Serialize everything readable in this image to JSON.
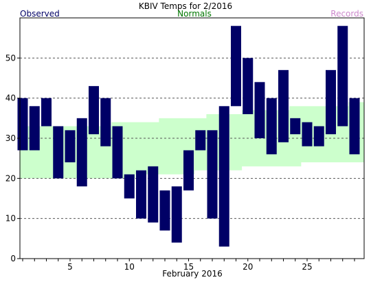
{
  "chart_data": {
    "type": "bar",
    "title": "KBIV Temps for 2/2016",
    "legend": {
      "observed": {
        "label": "Observed",
        "color": "#000066"
      },
      "normals": {
        "label": "Normals",
        "color": "#007700"
      },
      "records": {
        "label": "Records",
        "color": "#cc88cc"
      }
    },
    "xlabel": "February 2016",
    "xlim": [
      1,
      29
    ],
    "ylim": [
      0,
      60
    ],
    "x_ticks": [
      5,
      10,
      15,
      20,
      25
    ],
    "y_ticks": [
      0,
      10,
      20,
      30,
      40,
      50
    ],
    "grid": "dashed horizontal at y ticks",
    "observed_color": "#000066",
    "normals_color": "#ccffcc",
    "days": [
      1,
      2,
      3,
      4,
      5,
      6,
      7,
      8,
      9,
      10,
      11,
      12,
      13,
      14,
      15,
      16,
      17,
      18,
      19,
      20,
      21,
      22,
      23,
      24,
      25,
      26,
      27,
      28,
      29
    ],
    "observed_high": [
      40,
      38,
      40,
      33,
      32,
      35,
      43,
      40,
      33,
      21,
      22,
      23,
      17,
      18,
      27,
      32,
      32,
      38,
      58,
      50,
      44,
      40,
      47,
      35,
      34,
      33,
      47,
      58,
      40
    ],
    "observed_low": [
      27,
      27,
      33,
      20,
      24,
      18,
      31,
      28,
      20,
      15,
      10,
      9,
      7,
      4,
      17,
      27,
      10,
      3,
      38,
      36,
      30,
      26,
      29,
      31,
      28,
      28,
      31,
      33,
      26
    ],
    "normal_high": [
      33,
      33,
      33,
      33,
      33,
      33,
      33,
      33,
      34,
      34,
      34,
      34,
      35,
      35,
      35,
      35,
      36,
      36,
      36,
      37,
      37,
      37,
      37,
      38,
      38,
      38,
      38,
      38,
      39
    ],
    "normal_low": [
      20,
      20,
      20,
      20,
      20,
      20,
      20,
      20,
      20,
      20,
      21,
      21,
      21,
      21,
      21,
      22,
      22,
      22,
      22,
      23,
      23,
      23,
      23,
      23,
      24,
      24,
      24,
      24,
      24
    ]
  }
}
